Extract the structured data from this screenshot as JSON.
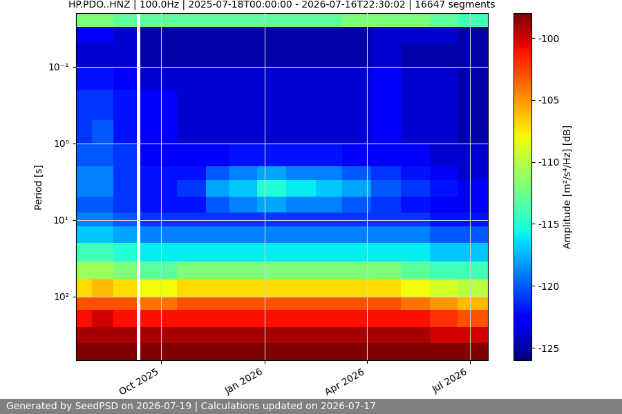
{
  "chart_data": {
    "type": "heatmap",
    "title": "HP.PDO..HNZ | 100.0Hz | 2025-07-18T00:00:00 - 2026-07-16T22:30:02 | 16647 segments",
    "y_label": "Period [s]",
    "footer": "Generated by SeedPSD on 2026-07-19 | Calculations updated on 2026-07-17",
    "log": "y",
    "grid": true,
    "xlim": [
      "2025-07-18T00:00:00",
      "2026-07-16T22:30:02"
    ],
    "xticks": [
      {
        "value": "2025-10-01",
        "label": "Oct 2025"
      },
      {
        "value": "2026-01-01",
        "label": "Jan 2026"
      },
      {
        "value": "2026-04-01",
        "label": "Apr 2026"
      },
      {
        "value": "2026-07-01",
        "label": "Jul 2026"
      }
    ],
    "ylim": [
      676,
      0.02
    ],
    "yticks": [
      {
        "value": 0.1,
        "label": "10⁻¹"
      },
      {
        "value": 1,
        "label": "10⁰"
      },
      {
        "value": 10,
        "label": "10¹"
      },
      {
        "value": 100,
        "label": "10²"
      }
    ],
    "time_edges": [
      "2025-07-18T00:00:00",
      "2025-08-01T00:00:00",
      "2025-08-20T00:00:00",
      "2025-09-10T00:00:00",
      "2025-09-13T00:00:00",
      "2025-10-15T00:00:00",
      "2025-11-10T00:00:00",
      "2025-12-01T00:00:00",
      "2025-12-25T00:00:00",
      "2026-01-20T00:00:00",
      "2026-02-15T00:00:00",
      "2026-03-10T00:00:00",
      "2026-04-05T00:00:00",
      "2026-05-01T00:00:00",
      "2026-05-27T00:00:00",
      "2026-06-20T00:00:00",
      "2026-07-16T22:30:02"
    ],
    "period_edges": [
      0.02,
      0.03,
      0.05,
      0.1,
      0.2,
      0.5,
      1,
      2,
      3,
      5,
      8,
      12,
      20,
      35,
      60,
      100,
      150,
      250,
      400,
      676
    ],
    "cells": [
      [
        -112,
        -112,
        -113,
        null,
        -113,
        -113,
        -113,
        -113,
        -113,
        -113,
        -113,
        -112,
        -112,
        -112,
        -113,
        -114
      ],
      [
        -123,
        -123,
        -124,
        null,
        -125,
        -125,
        -125,
        -125,
        -125,
        -125,
        -125,
        -125,
        -124,
        -124,
        -124,
        -125
      ],
      [
        -124,
        -124,
        -124,
        null,
        -125,
        -125,
        -125,
        -125,
        -125,
        -125,
        -125,
        -125,
        -124,
        -125,
        -125,
        -125
      ],
      [
        -122,
        -122,
        -123,
        null,
        -124,
        -124,
        -124,
        -124,
        -124,
        -124,
        -124,
        -124,
        -123,
        -124,
        -124,
        -125
      ],
      [
        -121,
        -121,
        -122,
        null,
        -123,
        -124,
        -124,
        -124,
        -124,
        -124,
        -124,
        -124,
        -123,
        -124,
        -124,
        -125
      ],
      [
        -121,
        -120,
        -122,
        null,
        -123,
        -124,
        -124,
        -124,
        -124,
        -124,
        -124,
        -124,
        -123,
        -124,
        -124,
        -125
      ],
      [
        -120,
        -120,
        -121,
        null,
        -123,
        -123,
        -123,
        -122,
        -122,
        -122,
        -122,
        -123,
        -123,
        -123,
        -124,
        -124
      ],
      [
        -119,
        -119,
        -121,
        null,
        -122,
        -122,
        -120,
        -119,
        -118,
        -119,
        -119,
        -120,
        -121,
        -122,
        -123,
        -124
      ],
      [
        -119,
        -119,
        -121,
        null,
        -122,
        -121,
        -118,
        -117,
        -115,
        -116,
        -117,
        -118,
        -120,
        -121,
        -122,
        -123
      ],
      [
        -120,
        -120,
        -121,
        null,
        -122,
        -122,
        -120,
        -119,
        -118,
        -119,
        -119,
        -120,
        -121,
        -122,
        -123,
        -123
      ],
      [
        -119,
        -119,
        -120,
        null,
        -121,
        -121,
        -121,
        -121,
        -121,
        -121,
        -121,
        -121,
        -121,
        -121,
        -122,
        -122
      ],
      [
        -117,
        -117,
        -118,
        null,
        -119,
        -119,
        -119,
        -119,
        -119,
        -119,
        -119,
        -119,
        -119,
        -119,
        -120,
        -120
      ],
      [
        -114,
        -114,
        -115,
        null,
        -116,
        -116,
        -116,
        -116,
        -116,
        -116,
        -116,
        -116,
        -116,
        -116,
        -117,
        -117
      ],
      [
        -111,
        -111,
        -112,
        null,
        -113,
        -112,
        -112,
        -112,
        -112,
        -112,
        -112,
        -112,
        -112,
        -113,
        -114,
        -114
      ],
      [
        -107,
        -106,
        -107,
        null,
        -108,
        -107,
        -107,
        -107,
        -107,
        -107,
        -107,
        -107,
        -107,
        -108,
        -109,
        -110
      ],
      [
        -103,
        -103,
        -103,
        null,
        -104,
        -103,
        -103,
        -103,
        -103,
        -103,
        -103,
        -103,
        -103,
        -104,
        -105,
        -106
      ],
      [
        -101,
        -100,
        -101,
        null,
        -101,
        -101,
        -101,
        -101,
        -101,
        -101,
        -101,
        -101,
        -101,
        -101,
        -102,
        -103
      ],
      [
        -99,
        -99,
        -99,
        null,
        -99,
        -99,
        -99,
        -99,
        -99,
        -99,
        -99,
        -99,
        -99,
        -99,
        -100,
        -100
      ],
      [
        -97,
        -97,
        -97,
        null,
        -97,
        -97,
        -97,
        -97,
        -97,
        -97,
        -97,
        -97,
        -97,
        -97,
        -97,
        -97
      ]
    ],
    "colorbar": {
      "label": "Amplitude [m²/s⁴/Hz] [dB]",
      "lim": [
        -126,
        -98
      ],
      "ticks": [
        -125,
        -120,
        -115,
        -110,
        -105,
        -100
      ]
    }
  }
}
